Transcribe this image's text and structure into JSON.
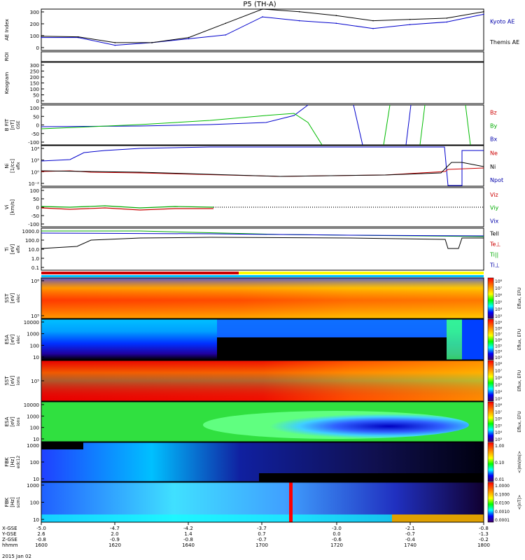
{
  "title": "P5 (TH-A)",
  "footer_date": "2015 Jan 02",
  "coord_rows": [
    {
      "label": "X-GSE",
      "values": [
        "-5.0",
        "-4.7",
        "-4.2",
        "-3.7",
        "-3.0",
        "-2.1",
        "-0.8"
      ]
    },
    {
      "label": "Y-GSE",
      "values": [
        "2.6",
        "2.0",
        "1.4",
        "0.7",
        "0.0",
        "-0.7",
        "-1.3"
      ]
    },
    {
      "label": "Z-GSE",
      "values": [
        "-0.8",
        "-0.9",
        "-0.8",
        "-0.7",
        "-0.6",
        "-0.4",
        "-0.2"
      ]
    },
    {
      "label": "hhmm",
      "values": [
        "1600",
        "1620",
        "1640",
        "1700",
        "1720",
        "1740",
        "1800"
      ]
    }
  ],
  "time_axis": {
    "start": "1600",
    "end": "1800"
  },
  "panels": [
    {
      "id": "ae",
      "ylabel": "AE Index",
      "yticks": [
        "300",
        "200",
        "100",
        "0"
      ],
      "legend": [
        {
          "text": "Kyoto AE",
          "color": "#0000aa"
        },
        {
          "text": "Themis AE",
          "color": "#000000"
        }
      ]
    },
    {
      "id": "roi",
      "ylabel": "ROI",
      "yticks": [],
      "legend": []
    },
    {
      "id": "keogram",
      "ylabel": "Keogram",
      "yticks": [
        "300",
        "250",
        "200",
        "150",
        "100",
        "50",
        "0"
      ],
      "legend": []
    },
    {
      "id": "bfit",
      "ylabel": "B FIT\n[nT]",
      "ylabel2": "GSE",
      "yticks": [
        "100",
        "50",
        "0",
        "-50",
        "-100"
      ],
      "legend": [
        {
          "text": "Bz",
          "color": "#cc0000"
        },
        {
          "text": "By",
          "color": "#00aa00"
        },
        {
          "text": "Bx",
          "color": "#0000aa"
        }
      ]
    },
    {
      "id": "ni",
      "ylabel": "Ni\n[1/cc]",
      "ylabel2": "eflx",
      "yticks": [
        "10⁴",
        "10²",
        "10⁰",
        "10⁻²"
      ],
      "legend": [
        {
          "text": "Ne",
          "color": "#cc0000"
        },
        {
          "text": "Ni",
          "color": "#000000"
        },
        {
          "text": "Npot",
          "color": "#0000aa"
        }
      ]
    },
    {
      "id": "vi",
      "ylabel": "Vi\n[km/s]",
      "yticks": [
        "100",
        "50",
        "0",
        "-50",
        "-100"
      ],
      "legend": [
        {
          "text": "Viz",
          "color": "#cc0000"
        },
        {
          "text": "Viy",
          "color": "#00aa00"
        },
        {
          "text": "Vix",
          "color": "#0000aa"
        }
      ]
    },
    {
      "id": "ti",
      "ylabel": "Ti\n[eV]",
      "ylabel2": "eflx",
      "yticks": [
        "1000.0",
        "100.0",
        "10.0",
        "1.0",
        "0.1"
      ],
      "legend": [
        {
          "text": "Tell",
          "color": "#000000"
        },
        {
          "text": "Te⊥",
          "color": "#cc0000"
        },
        {
          "text": "Ti||",
          "color": "#00aa00"
        },
        {
          "text": "Ti⊥",
          "color": "#0000aa"
        }
      ]
    },
    {
      "id": "sst_e",
      "ylabel": "SST\n[eV]",
      "ylabel2": "elec",
      "yticks": [
        "10⁶",
        "10⁵"
      ],
      "cbar": "Eflux, EFU",
      "cbar_ticks": [
        "10⁸",
        "10⁷",
        "10⁶",
        "10⁵",
        "10⁴",
        "10³"
      ]
    },
    {
      "id": "esa_e",
      "ylabel": "ESA\n[eV]",
      "ylabel2": "elec",
      "yticks": [
        "10000",
        "1000",
        "100",
        "10"
      ],
      "cbar": "Eflux, EFU",
      "cbar_ticks": [
        "10⁹",
        "10⁸",
        "10⁷",
        "10⁶",
        "10⁵",
        "10⁴",
        "10³"
      ]
    },
    {
      "id": "sst_i",
      "ylabel": "SST\n[eV]",
      "ylabel2": "ions",
      "yticks": [
        "10⁵"
      ],
      "cbar": "Eflux, EFU",
      "cbar_ticks": [
        "10⁸",
        "10⁷",
        "10⁶",
        "10⁵",
        "10⁴",
        "10³"
      ]
    },
    {
      "id": "esa_i",
      "ylabel": "ESA\n[eV]",
      "ylabel2": "ions",
      "yticks": [
        "10000",
        "1000",
        "100",
        "10"
      ],
      "cbar": "Eflux, EFU",
      "cbar_ticks": [
        "10⁸",
        "10⁷",
        "10⁶",
        "10⁵",
        "10⁴",
        "10³"
      ]
    },
    {
      "id": "fbk1",
      "ylabel": "FBK\n[Hz]",
      "ylabel2": "edc12",
      "yticks": [
        "1000",
        "100",
        "10"
      ],
      "cbar": "<|mV/m|>",
      "cbar_ticks": [
        "1.00",
        "0.10",
        "0.01"
      ]
    },
    {
      "id": "fbk2",
      "ylabel": "FBK\n[Hz]",
      "ylabel2": "scm1",
      "yticks": [
        "1000",
        "100",
        "10"
      ],
      "cbar": "<|nT|>",
      "cbar_ticks": [
        "1.0000",
        "0.1000",
        "0.0100",
        "0.0010",
        "0.0001"
      ]
    }
  ],
  "chart_data": {
    "type": "line",
    "title": "P5 (TH-A)",
    "x": [
      "1600",
      "1610",
      "1620",
      "1630",
      "1640",
      "1650",
      "1700",
      "1710",
      "1720",
      "1730",
      "1740",
      "1750",
      "1800"
    ],
    "series": [
      {
        "name": "Kyoto AE",
        "values": [
          100,
          100,
          40,
          60,
          90,
          120,
          260,
          230,
          210,
          170,
          200,
          220,
          280
        ]
      },
      {
        "name": "Themis AE",
        "values": [
          110,
          105,
          60,
          60,
          100,
          210,
          320,
          300,
          270,
          230,
          240,
          250,
          300
        ]
      }
    ],
    "ylabel": "AE Index",
    "ylim": [
      0,
      320
    ]
  }
}
